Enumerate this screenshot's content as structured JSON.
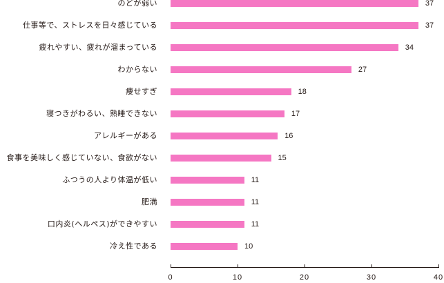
{
  "chart_data": {
    "type": "bar",
    "orientation": "horizontal",
    "title": "",
    "xlabel": "",
    "ylabel": "",
    "xlim": [
      0,
      40
    ],
    "xticks": [
      0,
      10,
      20,
      30,
      40
    ],
    "grid": false,
    "legend": null,
    "bar_color": "#f577c3",
    "categories": [
      "のどが弱い",
      "仕事等で、ストレスを日々感じている",
      "疲れやすい、疲れが溜まっている",
      "わからない",
      "痩せすぎ",
      "寝つきがわるい、熟睡できない",
      "アレルギーがある",
      "食事を美味しく感じていない、食欲がない",
      "ふつうの人より体温が低い",
      "肥満",
      "口内炎(ヘルペス)ができやすい",
      "冷え性である"
    ],
    "values": [
      37,
      37,
      34,
      27,
      18,
      17,
      16,
      15,
      11,
      11,
      11,
      10
    ]
  },
  "axis": {
    "ticks": [
      "0",
      "10",
      "20",
      "30",
      "40"
    ]
  },
  "rows": [
    {
      "label": "のどが弱い",
      "value": "37"
    },
    {
      "label": "仕事等で、ストレスを日々感じている",
      "value": "37"
    },
    {
      "label": "疲れやすい、疲れが溜まっている",
      "value": "34"
    },
    {
      "label": "わからない",
      "value": "27"
    },
    {
      "label": "痩せすぎ",
      "value": "18"
    },
    {
      "label": "寝つきがわるい、熟睡できない",
      "value": "17"
    },
    {
      "label": "アレルギーがある",
      "value": "16"
    },
    {
      "label": "食事を美味しく感じていない、食欲がない",
      "value": "15"
    },
    {
      "label": "ふつうの人より体温が低い",
      "value": "11"
    },
    {
      "label": "肥満",
      "value": "11"
    },
    {
      "label": "口内炎(ヘルペス)ができやすい",
      "value": "11"
    },
    {
      "label": "冷え性である",
      "value": "10"
    }
  ]
}
